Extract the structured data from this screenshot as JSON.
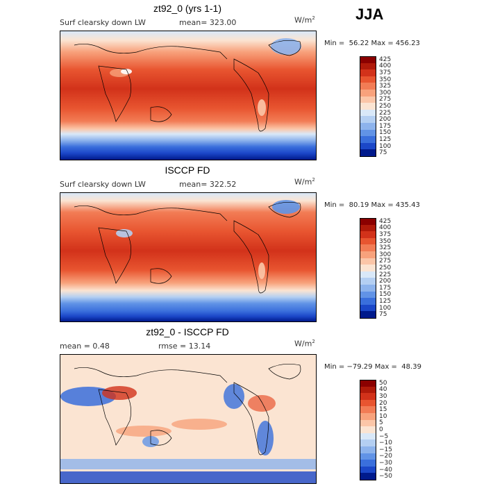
{
  "season": "JJA",
  "chart_data": [
    {
      "type": "heatmap",
      "title": "zt92_0 (yrs 1-1)",
      "field_label": "Surf clearsky down LW",
      "mean_label": "mean=",
      "mean_value": "323.00",
      "unit_base": "W/m",
      "unit_exp": "2",
      "min_label": "Min =",
      "min_value": "56.22",
      "max_label": "Max =",
      "max_value": "456.23",
      "levels": [
        "425",
        "400",
        "375",
        "350",
        "325",
        "300",
        "275",
        "250",
        "225",
        "200",
        "175",
        "150",
        "125",
        "100",
        "75"
      ],
      "colors": [
        "#8b0000",
        "#b01a0a",
        "#d2321a",
        "#e85530",
        "#f27c55",
        "#f8a27c",
        "#fbc6a8",
        "#fbe4d2",
        "#d9e8f8",
        "#b4cff2",
        "#8db3ec",
        "#6193e6",
        "#3a6fdc",
        "#1b47c8",
        "#001a8c"
      ],
      "mask_id": "m1"
    },
    {
      "type": "heatmap",
      "title": "ISCCP FD",
      "field_label": "Surf clearsky down LW",
      "mean_label": "mean=",
      "mean_value": "322.52",
      "unit_base": "W/m",
      "unit_exp": "2",
      "min_label": "Min =",
      "min_value": "80.19",
      "max_label": "Max =",
      "max_value": "435.43",
      "levels": [
        "425",
        "400",
        "375",
        "350",
        "325",
        "300",
        "275",
        "250",
        "225",
        "200",
        "175",
        "150",
        "125",
        "100",
        "75"
      ],
      "colors": [
        "#8b0000",
        "#b01a0a",
        "#d2321a",
        "#e85530",
        "#f27c55",
        "#f8a27c",
        "#fbc6a8",
        "#fbe4d2",
        "#d9e8f8",
        "#b4cff2",
        "#8db3ec",
        "#6193e6",
        "#3a6fdc",
        "#1b47c8",
        "#001a8c"
      ],
      "mask_id": "m2"
    },
    {
      "type": "heatmap",
      "title": "zt92_0 - ISCCP FD",
      "mean_label": "mean =",
      "mean_value": "0.48",
      "rmse_label": "rmse =",
      "rmse_value": "13.14",
      "unit_base": "W/m",
      "unit_exp": "2",
      "min_label": "Min =",
      "min_value": "−79.29",
      "max_label": "Max =",
      "max_value": "48.39",
      "levels": [
        "50",
        "40",
        "30",
        "20",
        "15",
        "10",
        "5",
        "0",
        "−5",
        "−10",
        "−15",
        "−20",
        "−30",
        "−40",
        "−50"
      ],
      "colors": [
        "#8b0000",
        "#b01a0a",
        "#d2321a",
        "#e85530",
        "#f27c55",
        "#f8a27c",
        "#fbc6a8",
        "#fbe4d2",
        "#d9e8f8",
        "#b4cff2",
        "#8db3ec",
        "#6193e6",
        "#3a6fdc",
        "#1b47c8",
        "#001a8c"
      ],
      "mask_id": "m3"
    }
  ]
}
